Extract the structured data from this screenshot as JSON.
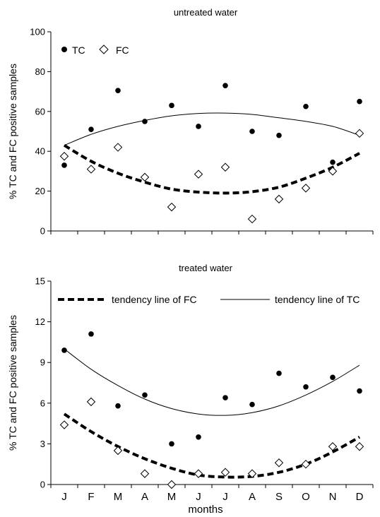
{
  "chart_data": [
    {
      "type": "scatter",
      "title": "untreated water",
      "xlabel": "",
      "ylabel": "% TC and FC positive samples",
      "ylim": [
        0,
        100
      ],
      "yticks": [
        0,
        20,
        40,
        60,
        80,
        100
      ],
      "categories": [
        "J",
        "F",
        "M",
        "A",
        "M",
        "J",
        "J",
        "A",
        "S",
        "O",
        "N",
        "D"
      ],
      "show_x_tick_labels": false,
      "grid": false,
      "legend_position": "top-left",
      "series": [
        {
          "name": "TC",
          "marker": "filled-circle",
          "values": [
            33,
            51,
            70.5,
            55,
            63,
            52.5,
            73,
            50,
            48,
            62.5,
            34.5,
            65
          ]
        },
        {
          "name": "FC",
          "marker": "open-diamond",
          "values": [
            37.5,
            31,
            42,
            27,
            12,
            28.5,
            32,
            6,
            16,
            21.5,
            30,
            49
          ]
        }
      ],
      "trend_lines": [
        {
          "of": "TC",
          "style": "solid",
          "values": [
            43,
            48.5,
            52.5,
            55.5,
            57.8,
            59,
            59.2,
            58.5,
            56.8,
            55,
            52.5,
            48
          ]
        },
        {
          "of": "FC",
          "style": "dashed",
          "values": [
            43,
            35,
            29,
            24.5,
            21,
            19.5,
            19,
            19.7,
            22,
            26.5,
            32,
            39
          ]
        }
      ]
    },
    {
      "type": "scatter",
      "title": "treated water",
      "xlabel": "months",
      "ylabel": "% TC and FC positive samples",
      "ylim": [
        0,
        15
      ],
      "yticks": [
        0,
        3,
        6,
        9,
        12,
        15
      ],
      "categories": [
        "J",
        "F",
        "M",
        "A",
        "M",
        "J",
        "J",
        "A",
        "S",
        "O",
        "N",
        "D"
      ],
      "show_x_tick_labels": true,
      "grid": false,
      "legend_position": "top",
      "legend": [
        {
          "label": "tendency line of FC",
          "style": "dashed"
        },
        {
          "label": "tendency line of TC",
          "style": "solid"
        }
      ],
      "series": [
        {
          "name": "TC",
          "marker": "filled-circle",
          "values": [
            9.9,
            11.1,
            5.8,
            6.6,
            3.0,
            3.5,
            6.4,
            5.9,
            8.2,
            7.2,
            7.9,
            6.9
          ]
        },
        {
          "name": "FC",
          "marker": "open-diamond",
          "values": [
            4.4,
            6.1,
            2.5,
            0.8,
            0.0,
            0.8,
            0.9,
            0.8,
            1.6,
            1.5,
            2.8,
            2.8
          ]
        }
      ],
      "trend_lines": [
        {
          "of": "TC",
          "style": "solid",
          "values": [
            10.0,
            8.5,
            7.3,
            6.3,
            5.6,
            5.2,
            5.1,
            5.3,
            5.8,
            6.6,
            7.6,
            8.8
          ]
        },
        {
          "of": "FC",
          "style": "dashed",
          "values": [
            5.2,
            3.9,
            2.8,
            1.9,
            1.2,
            0.7,
            0.55,
            0.6,
            0.9,
            1.5,
            2.4,
            3.5
          ]
        }
      ]
    }
  ]
}
